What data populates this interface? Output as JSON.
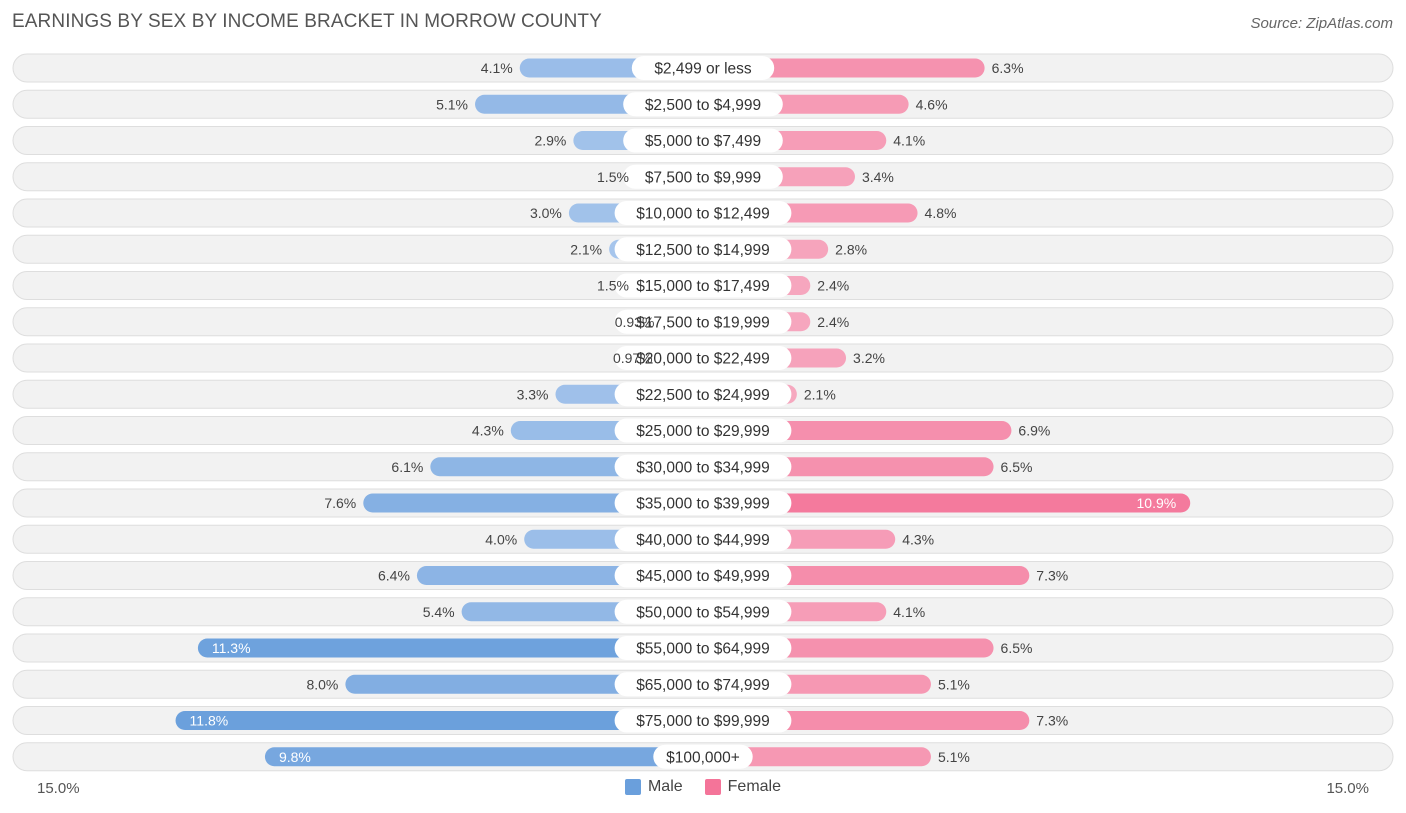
{
  "header": {
    "title": "EARNINGS BY SEX BY INCOME BRACKET IN MORROW COUNTY",
    "source": "Source: ZipAtlas.com"
  },
  "axis": {
    "left_label": "15.0%",
    "right_label": "15.0%"
  },
  "legend": [
    {
      "name": "Male",
      "color": "#6a9fdc"
    },
    {
      "name": "Female",
      "color": "#f47499"
    }
  ],
  "colors": {
    "male": "#6a9fdc",
    "female": "#f47499",
    "row_bg": "#f1f1f1"
  },
  "chart_data": {
    "type": "bar",
    "orientation": "horizontal-diverging",
    "title": "EARNINGS BY SEX BY INCOME BRACKET IN MORROW COUNTY",
    "xlim": [
      -15.0,
      15.0
    ],
    "categories": [
      "$2,499 or less",
      "$2,500 to $4,999",
      "$5,000 to $7,499",
      "$7,500 to $9,999",
      "$10,000 to $12,499",
      "$12,500 to $14,999",
      "$15,000 to $17,499",
      "$17,500 to $19,999",
      "$20,000 to $22,499",
      "$22,500 to $24,999",
      "$25,000 to $29,999",
      "$30,000 to $34,999",
      "$35,000 to $39,999",
      "$40,000 to $44,999",
      "$45,000 to $49,999",
      "$50,000 to $54,999",
      "$55,000 to $64,999",
      "$65,000 to $74,999",
      "$75,000 to $99,999",
      "$100,000+"
    ],
    "series": [
      {
        "name": "Male",
        "values": [
          4.1,
          5.1,
          2.9,
          1.5,
          3.0,
          2.1,
          1.5,
          0.93,
          0.97,
          3.3,
          4.3,
          6.1,
          7.6,
          4.0,
          6.4,
          5.4,
          11.3,
          8.0,
          11.8,
          9.8
        ],
        "labels": [
          "4.1%",
          "5.1%",
          "2.9%",
          "1.5%",
          "3.0%",
          "2.1%",
          "1.5%",
          "0.93%",
          "0.97%",
          "3.3%",
          "4.3%",
          "6.1%",
          "7.6%",
          "4.0%",
          "6.4%",
          "5.4%",
          "11.3%",
          "8.0%",
          "11.8%",
          "9.8%"
        ]
      },
      {
        "name": "Female",
        "values": [
          6.3,
          4.6,
          4.1,
          3.4,
          4.8,
          2.8,
          2.4,
          2.4,
          3.2,
          2.1,
          6.9,
          6.5,
          10.9,
          4.3,
          7.3,
          4.1,
          6.5,
          5.1,
          7.3,
          5.1
        ],
        "labels": [
          "6.3%",
          "4.6%",
          "4.1%",
          "3.4%",
          "4.8%",
          "2.8%",
          "2.4%",
          "2.4%",
          "3.2%",
          "2.1%",
          "6.9%",
          "6.5%",
          "10.9%",
          "4.3%",
          "7.3%",
          "4.1%",
          "6.5%",
          "5.1%",
          "7.3%",
          "5.1%"
        ]
      }
    ]
  }
}
